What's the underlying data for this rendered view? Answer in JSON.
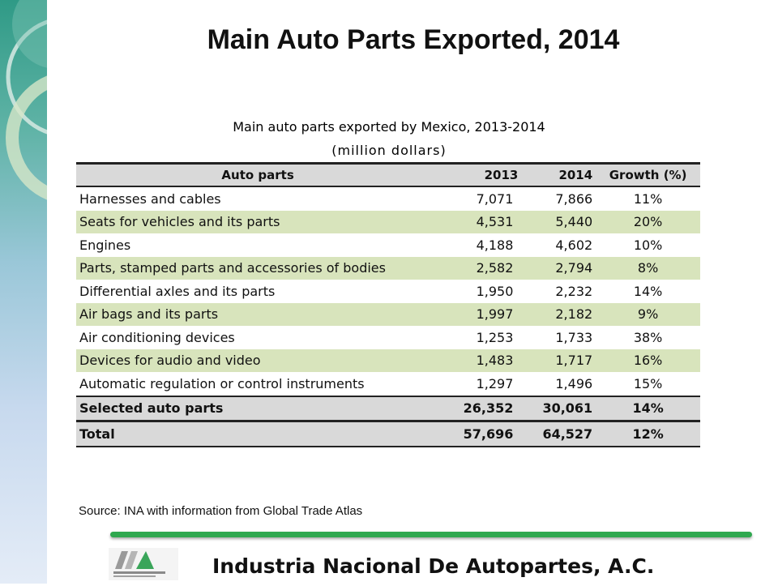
{
  "slide": {
    "title": "Main Auto Parts Exported, 2014",
    "source": "Source: INA with information from Global Trade Atlas",
    "footer_org": "Industria Nacional De  Autopartes, A.C."
  },
  "colors": {
    "green_row": "#d8e4bc",
    "gray_row": "#d9d9d9",
    "footer_line": "#2fa84f",
    "band_top": "#2f9a86"
  },
  "chart_data": {
    "type": "table",
    "title": "Main auto parts exported by Mexico, 2013-2014",
    "subtitle": "(million dollars)",
    "columns": [
      "Auto parts",
      "2013",
      "2014",
      "Growth  (%)"
    ],
    "rows": [
      {
        "part": "Harnesses and cables",
        "y2013": "7,071",
        "y2014": "7,866",
        "growth": "11%"
      },
      {
        "part": "Seats for vehicles and its parts",
        "y2013": "4,531",
        "y2014": "5,440",
        "growth": "20%"
      },
      {
        "part": "Engines",
        "y2013": "4,188",
        "y2014": "4,602",
        "growth": "10%"
      },
      {
        "part": "Parts, stamped parts and accessories of bodies",
        "y2013": "2,582",
        "y2014": "2,794",
        "growth": "8%"
      },
      {
        "part": "Differential axles and its parts",
        "y2013": "1,950",
        "y2014": "2,232",
        "growth": "14%"
      },
      {
        "part": "Air bags and its parts",
        "y2013": "1,997",
        "y2014": "2,182",
        "growth": "9%"
      },
      {
        "part": "Air conditioning devices",
        "y2013": "1,253",
        "y2014": "1,733",
        "growth": "38%"
      },
      {
        "part": "Devices for audio and video",
        "y2013": "1,483",
        "y2014": "1,717",
        "growth": "16%"
      },
      {
        "part": "Automatic regulation or control instruments",
        "y2013": "1,297",
        "y2014": "1,496",
        "growth": "15%"
      }
    ],
    "summary_rows": [
      {
        "part": "Selected auto parts",
        "y2013": "26,352",
        "y2014": "30,061",
        "growth": "14%"
      },
      {
        "part": "Total",
        "y2013": "57,696",
        "y2014": "64,527",
        "growth": "12%"
      }
    ]
  }
}
